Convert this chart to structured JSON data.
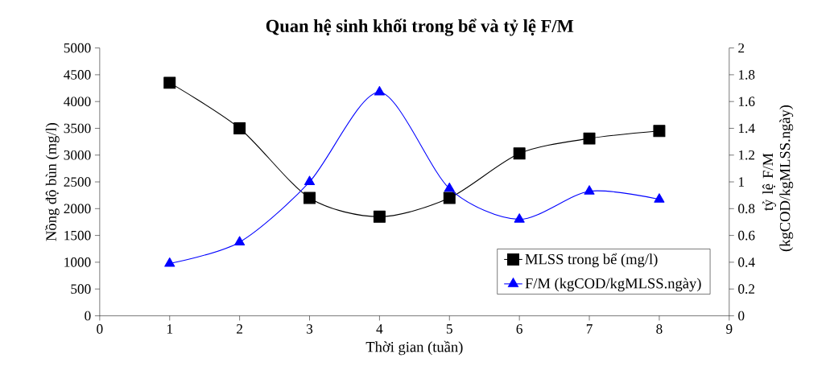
{
  "chart_data": {
    "type": "line",
    "title": "Quan hệ sinh khối trong bể và tỷ lệ F/M",
    "xlabel": "Thời gian (tuần)",
    "ylabel": "Nồng độ bùn (mg/l)",
    "y2label": "tỷ lệ F/M (kgCOD/kgMLSS.ngày)",
    "x": [
      1,
      2,
      3,
      4,
      5,
      6,
      7,
      8
    ],
    "series": [
      {
        "name": "MLSS trong bể (mg/l)",
        "color": "#000000",
        "marker": "square",
        "values": [
          4350,
          3500,
          2200,
          1850,
          2200,
          3030,
          3310,
          3450
        ]
      },
      {
        "name": "F/M (kgCOD/kgMLSS.ngày)",
        "color": "#0000ff",
        "marker": "triangle",
        "axis": "y2",
        "values": [
          0.39,
          0.55,
          1.0,
          1.67,
          0.95,
          0.72,
          0.93,
          0.87
        ]
      }
    ],
    "xlim": [
      0,
      9
    ],
    "xticks": [
      0,
      1,
      2,
      3,
      4,
      5,
      6,
      7,
      8,
      9
    ],
    "ylim": [
      0,
      5000
    ],
    "yticks": [
      0,
      500,
      1000,
      1500,
      2000,
      2500,
      3000,
      3500,
      4000,
      4500,
      5000
    ],
    "y2lim": [
      0,
      2
    ],
    "y2ticks": [
      0,
      0.2,
      0.4,
      0.6,
      0.8,
      1,
      1.2,
      1.4,
      1.6,
      1.8,
      2
    ],
    "grid": false,
    "legend": "bottom right",
    "line_style": "solid"
  }
}
